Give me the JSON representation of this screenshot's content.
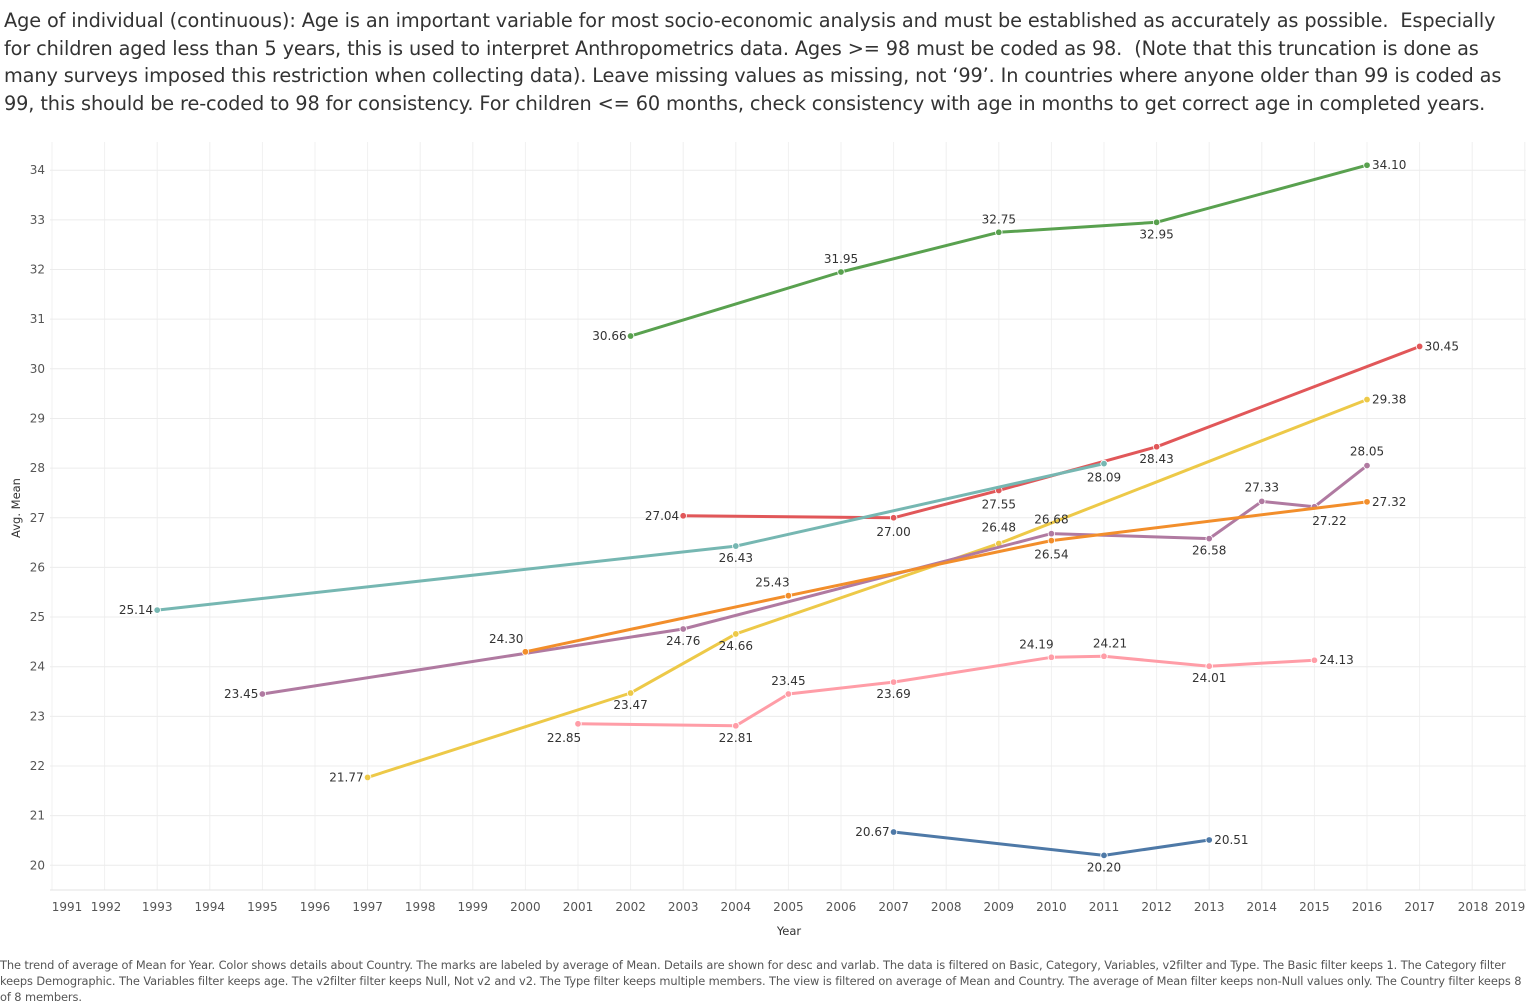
{
  "title": "Age of individual (continuous): Age is an important variable for most socio-economic analysis and must be established as accurately as possible.  Especially for children aged less than 5 years, this is used to interpret Anthropometrics data. Ages >= 98 must be coded as 98.  (Note that this truncation is done as many surveys imposed this restriction when collecting data). Leave missing values as missing, not ‘99’. In countries where anyone older than 99 is coded as 99, this should be re-coded to 98 for consistency. For children <= 60 months, check consistency with age in months to get correct age in completed years.",
  "caption": "The trend of average of Mean for Year.  Color shows details about Country.  The marks are labeled by average of Mean.  Details are shown for desc and varlab. The data is filtered on Basic, Category, Variables, v2filter and Type. The Basic filter keeps 1. The Category filter keeps Demographic. The Variables filter keeps age. The v2filter filter keeps Null, Not v2 and v2. The Type filter keeps multiple members. The view is filtered on average of Mean and Country. The average of Mean filter keeps non-Null values only. The Country filter keeps 8 of 8 members.",
  "chart_data": {
    "type": "line",
    "xlabel": "Year",
    "ylabel": "Avg. Mean",
    "x_ticks": [
      1991,
      1992,
      1993,
      1994,
      1995,
      1996,
      1997,
      1998,
      1999,
      2000,
      2001,
      2002,
      2003,
      2004,
      2005,
      2006,
      2007,
      2008,
      2009,
      2010,
      2011,
      2012,
      2013,
      2014,
      2015,
      2016,
      2017,
      2018,
      2019
    ],
    "y_ticks": [
      20,
      21,
      22,
      23,
      24,
      25,
      26,
      27,
      28,
      29,
      30,
      31,
      32,
      33,
      34
    ],
    "xlim": [
      1991,
      2019
    ],
    "ylim": [
      19.5,
      34.5
    ],
    "grid": true,
    "series": [
      {
        "color": "#59a14f",
        "points": [
          [
            2002,
            30.66
          ],
          [
            2006,
            31.95
          ],
          [
            2009,
            32.75
          ],
          [
            2012,
            32.95
          ],
          [
            2016,
            34.1
          ]
        ],
        "labels": [
          "30.66",
          "31.95",
          "32.75",
          "32.95",
          "34.10"
        ]
      },
      {
        "color": "#e15759",
        "points": [
          [
            2003,
            27.04
          ],
          [
            2007,
            27.0
          ],
          [
            2009,
            27.55
          ],
          [
            2012,
            28.43
          ],
          [
            2017,
            30.45
          ]
        ],
        "labels": [
          "27.04",
          "27.00",
          "27.55",
          "28.43",
          "30.45"
        ]
      },
      {
        "color": "#edc948",
        "points": [
          [
            1997,
            21.77
          ],
          [
            2002,
            23.47
          ],
          [
            2004,
            24.66
          ],
          [
            2009,
            26.48
          ],
          [
            2016,
            29.38
          ]
        ],
        "labels": [
          "21.77",
          "23.47",
          "24.66",
          "26.48",
          "29.38"
        ]
      },
      {
        "color": "#76b7b2",
        "points": [
          [
            1993,
            25.14
          ],
          [
            2004,
            26.43
          ],
          [
            2011,
            28.09
          ]
        ],
        "labels": [
          "25.14",
          "26.43",
          "28.09"
        ]
      },
      {
        "color": "#b07aa1",
        "points": [
          [
            1995,
            23.45
          ],
          [
            2003,
            24.76
          ],
          [
            2010,
            26.68
          ],
          [
            2013,
            26.58
          ],
          [
            2014,
            27.33
          ],
          [
            2015,
            27.22
          ],
          [
            2016,
            28.05
          ]
        ],
        "labels": [
          "23.45",
          "24.76",
          "26.68",
          "26.58",
          "27.33",
          "27.22",
          "28.05"
        ]
      },
      {
        "color": "#f28e2b",
        "points": [
          [
            2000,
            24.3
          ],
          [
            2005,
            25.43
          ],
          [
            2010,
            26.54
          ],
          [
            2016,
            27.32
          ]
        ],
        "labels": [
          "24.30",
          "25.43",
          "26.54",
          "27.32"
        ]
      },
      {
        "color": "#ff9da7",
        "points": [
          [
            2001,
            22.85
          ],
          [
            2004,
            22.81
          ],
          [
            2005,
            23.45
          ],
          [
            2007,
            23.69
          ],
          [
            2010,
            24.19
          ],
          [
            2011,
            24.21
          ],
          [
            2013,
            24.01
          ],
          [
            2015,
            24.13
          ]
        ],
        "labels": [
          "22.85",
          "22.81",
          "23.45",
          "23.69",
          "24.19",
          "24.21",
          "24.01",
          "24.13"
        ]
      },
      {
        "color": "#4e79a7",
        "points": [
          [
            2007,
            20.67
          ],
          [
            2011,
            20.2
          ],
          [
            2013,
            20.51
          ]
        ],
        "labels": [
          "20.67",
          "20.20",
          "20.51"
        ]
      }
    ]
  }
}
